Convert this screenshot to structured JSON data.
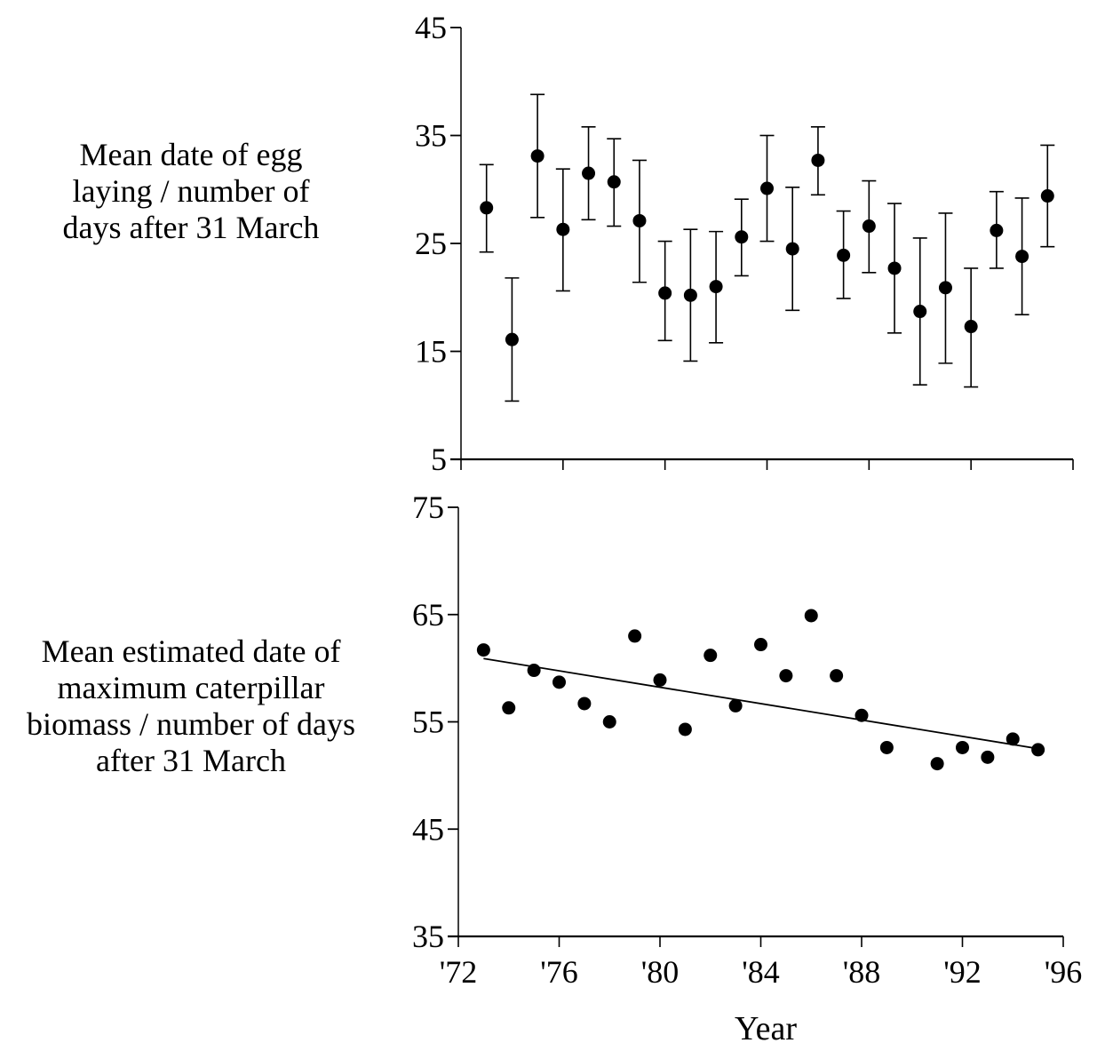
{
  "chart_data": [
    {
      "type": "scatter",
      "panel": "top",
      "title": "",
      "ylabel": "Mean date of egg laying / number of days after 31 March",
      "xlabel": "",
      "xlim": [
        1972,
        1996
      ],
      "ylim": [
        5,
        45
      ],
      "yticks": [
        45,
        35,
        25,
        15,
        5
      ],
      "ytick_labels": [
        "45",
        "35",
        "25",
        "15",
        "5"
      ],
      "xticks": [
        1972,
        1976,
        1980,
        1984,
        1988,
        1992,
        1996
      ],
      "grid": false,
      "error_bars": true,
      "points": [
        {
          "year": 1973,
          "y": 28.3,
          "upper": 32.3,
          "lower": 24.2
        },
        {
          "year": 1974,
          "y": 16.1,
          "upper": 21.8,
          "lower": 10.4
        },
        {
          "year": 1975,
          "y": 33.1,
          "upper": 38.8,
          "lower": 27.4
        },
        {
          "year": 1976,
          "y": 26.3,
          "upper": 31.9,
          "lower": 20.6
        },
        {
          "year": 1977,
          "y": 31.5,
          "upper": 35.8,
          "lower": 27.2
        },
        {
          "year": 1978,
          "y": 30.7,
          "upper": 34.7,
          "lower": 26.6
        },
        {
          "year": 1979,
          "y": 27.1,
          "upper": 32.7,
          "lower": 21.4
        },
        {
          "year": 1980,
          "y": 20.4,
          "upper": 25.2,
          "lower": 16.0
        },
        {
          "year": 1981,
          "y": 20.2,
          "upper": 26.3,
          "lower": 14.1
        },
        {
          "year": 1982,
          "y": 21.0,
          "upper": 26.1,
          "lower": 15.8
        },
        {
          "year": 1983,
          "y": 25.6,
          "upper": 29.1,
          "lower": 22.0
        },
        {
          "year": 1984,
          "y": 30.1,
          "upper": 35.0,
          "lower": 25.2
        },
        {
          "year": 1985,
          "y": 24.5,
          "upper": 30.2,
          "lower": 18.8
        },
        {
          "year": 1986,
          "y": 32.7,
          "upper": 35.8,
          "lower": 29.5
        },
        {
          "year": 1987,
          "y": 23.9,
          "upper": 28.0,
          "lower": 19.9
        },
        {
          "year": 1988,
          "y": 26.6,
          "upper": 30.8,
          "lower": 22.3
        },
        {
          "year": 1989,
          "y": 22.7,
          "upper": 28.7,
          "lower": 16.7
        },
        {
          "year": 1990,
          "y": 18.7,
          "upper": 25.5,
          "lower": 11.9
        },
        {
          "year": 1991,
          "y": 20.9,
          "upper": 27.8,
          "lower": 13.9
        },
        {
          "year": 1992,
          "y": 17.3,
          "upper": 22.7,
          "lower": 11.7
        },
        {
          "year": 1993,
          "y": 26.2,
          "upper": 29.8,
          "lower": 22.7
        },
        {
          "year": 1994,
          "y": 23.8,
          "upper": 29.2,
          "lower": 18.4
        },
        {
          "year": 1995,
          "y": 29.4,
          "upper": 34.1,
          "lower": 24.7
        }
      ]
    },
    {
      "type": "scatter",
      "panel": "bottom",
      "title": "",
      "ylabel": "Mean estimated date of maximum caterpillar biomass / number of days after 31 March",
      "xlabel": "Year",
      "xlim": [
        1972,
        1996
      ],
      "ylim": [
        35,
        75
      ],
      "yticks": [
        75,
        65,
        55,
        45,
        35
      ],
      "ytick_labels": [
        "75",
        "65",
        "55",
        "45",
        "35"
      ],
      "xticks": [
        1972,
        1976,
        1980,
        1984,
        1988,
        1992,
        1996
      ],
      "xtick_labels": [
        "'72",
        "'76",
        "'80",
        "'84",
        "'88",
        "'92",
        "'96"
      ],
      "grid": false,
      "points": [
        {
          "year": 1973,
          "y": 61.7
        },
        {
          "year": 1974,
          "y": 56.3
        },
        {
          "year": 1975,
          "y": 59.8
        },
        {
          "year": 1976,
          "y": 58.7
        },
        {
          "year": 1977,
          "y": 56.7
        },
        {
          "year": 1978,
          "y": 55.0
        },
        {
          "year": 1979,
          "y": 63.0
        },
        {
          "year": 1980,
          "y": 58.9
        },
        {
          "year": 1981,
          "y": 54.3
        },
        {
          "year": 1982,
          "y": 61.2
        },
        {
          "year": 1983,
          "y": 56.5
        },
        {
          "year": 1984,
          "y": 62.2
        },
        {
          "year": 1985,
          "y": 59.3
        },
        {
          "year": 1986,
          "y": 64.9
        },
        {
          "year": 1987,
          "y": 59.3
        },
        {
          "year": 1988,
          "y": 55.6
        },
        {
          "year": 1989,
          "y": 52.6
        },
        {
          "year": 1991,
          "y": 51.1
        },
        {
          "year": 1992,
          "y": 52.6
        },
        {
          "year": 1993,
          "y": 51.7
        },
        {
          "year": 1994,
          "y": 53.4
        },
        {
          "year": 1995,
          "y": 52.4
        }
      ],
      "trend_line": {
        "x": [
          1973,
          1995
        ],
        "y": [
          60.9,
          52.5
        ]
      }
    }
  ]
}
